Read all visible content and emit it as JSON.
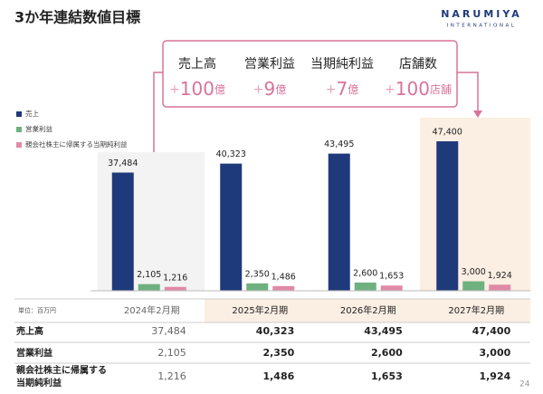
{
  "header": {
    "title": "3か年連結数値目標",
    "logo": "NARUMIYA",
    "logo_sub": "INTERNATIONAL"
  },
  "targets": [
    {
      "label": "売上高",
      "sign": "+",
      "amount": "100",
      "unit": "億"
    },
    {
      "label": "営業利益",
      "sign": "+",
      "amount": "9",
      "unit": "億"
    },
    {
      "label": "当期純利益",
      "sign": "+",
      "amount": "7",
      "unit": "億"
    },
    {
      "label": "店舗数",
      "sign": "+",
      "amount": "100",
      "unit": "店舗"
    }
  ],
  "chart_data": {
    "type": "bar",
    "categories": [
      "2024年2月期",
      "2025年2月期",
      "2026年2月期",
      "2027年2月期"
    ],
    "series": [
      {
        "name": "売上",
        "color": "#1f3a7a",
        "values": [
          37484,
          40323,
          43495,
          47400
        ],
        "value_labels": [
          "37,484",
          "40,323",
          "43,495",
          "47,400"
        ]
      },
      {
        "name": "営業利益",
        "color": "#6fb07f",
        "values": [
          2105,
          2350,
          2600,
          3000
        ],
        "value_labels": [
          "2,105",
          "2,350",
          "2,600",
          "3,000"
        ]
      },
      {
        "name": "親会社株主に帰属する当期純利益",
        "color": "#e08aa8",
        "values": [
          1216,
          1486,
          1653,
          1924
        ],
        "value_labels": [
          "1,216",
          "1,486",
          "1,653",
          "1,924"
        ]
      }
    ]
  },
  "table": {
    "unit": "単位：百万円",
    "row_labels": [
      "売上高",
      "営業利益",
      "親会社株主に帰属する",
      "当期純利益"
    ]
  },
  "page_number": "24"
}
